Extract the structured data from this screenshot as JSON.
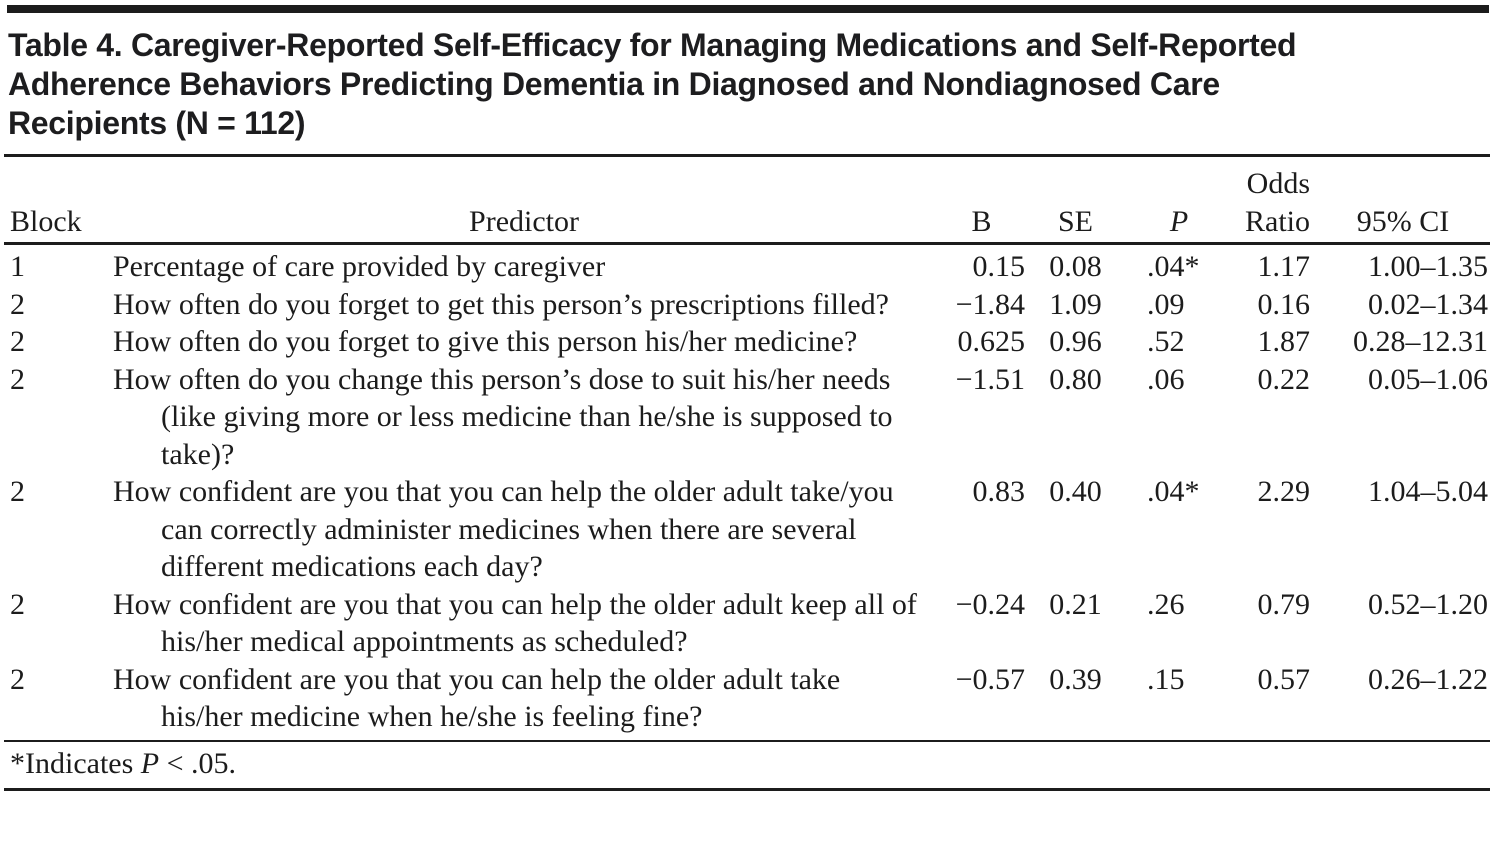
{
  "ink_color": "#1c1c1c",
  "title_lines": [
    "Table 4. Caregiver-Reported Self-Efficacy for Managing Medications and Self-Reported",
    "Adherence Behaviors Predicting Dementia in Diagnosed and Nondiagnosed Care",
    "Recipients (N = 112)"
  ],
  "table": {
    "columns": {
      "block": "Block",
      "predictor": "Predictor",
      "b": "B",
      "se": "SE",
      "p": "P",
      "odds_line1": "Odds",
      "odds_line2": "Ratio",
      "ci": "95% CI"
    },
    "rows": [
      {
        "block": "1",
        "predictor": "Percentage of care provided by caregiver",
        "b": "0.15",
        "se": "0.08",
        "p": ".04*",
        "odds_ratio": "1.17",
        "ci": "1.00–1.35"
      },
      {
        "block": "2",
        "predictor": "How often do you forget to get this person’s prescriptions filled?",
        "b": "−1.84",
        "se": "1.09",
        "p": ".09",
        "odds_ratio": "0.16",
        "ci": "0.02–1.34"
      },
      {
        "block": "2",
        "predictor": "How often do you forget to give this person his/her medicine?",
        "b": "0.625",
        "se": "0.96",
        "p": ".52",
        "odds_ratio": "1.87",
        "ci": "0.28–12.31"
      },
      {
        "block": "2",
        "predictor": "How often do you change this person’s dose to suit his/her needs (like giving more or less medicine than he/she is supposed to take)?",
        "b": "−1.51",
        "se": "0.80",
        "p": ".06",
        "odds_ratio": "0.22",
        "ci": "0.05–1.06"
      },
      {
        "block": "2",
        "predictor": "How confident are you that you can help the older adult take/you can correctly administer medicines when there are several different medications each day?",
        "b": "0.83",
        "se": "0.40",
        "p": ".04*",
        "odds_ratio": "2.29",
        "ci": "1.04–5.04"
      },
      {
        "block": "2",
        "predictor": "How confident are you that you can help the older adult keep all of his/her medical appointments as scheduled?",
        "b": "−0.24",
        "se": "0.21",
        "p": ".26",
        "odds_ratio": "0.79",
        "ci": "0.52–1.20"
      },
      {
        "block": "2",
        "predictor": "How confident are you that you can help the older adult take his/her medicine when he/she is feeling fine?",
        "b": "−0.57",
        "se": "0.39",
        "p": ".15",
        "odds_ratio": "0.57",
        "ci": "0.26–1.22"
      }
    ]
  },
  "footnote": {
    "prefix": "*Indicates ",
    "p_symbol": "P",
    "rest": " < .05."
  }
}
